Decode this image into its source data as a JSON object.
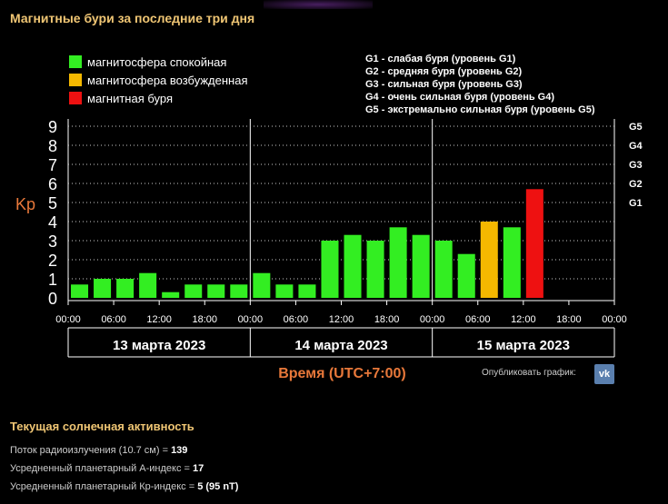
{
  "title": "Магнитные бури за последние три дня",
  "legend": [
    {
      "label": "магнитосфера спокойная",
      "color": "#33ee22"
    },
    {
      "label": "магнитосфера возбужденная",
      "color": "#f5b800"
    },
    {
      "label": "магнитная буря",
      "color": "#ee1111"
    }
  ],
  "g_legend": [
    "G1 - слабая буря (уровень G1)",
    "G2 - средняя буря (уровень G2)",
    "G3 - сильная буря (уровень G3)",
    "G4 - очень сильная буря (уровень G4)",
    "G5 - экстремально сильная буря (уровень G5)"
  ],
  "x_axis_title": "Время (UTC+7:00)",
  "publish": {
    "label": "Опубликовать график:",
    "icon": "vk-icon"
  },
  "solar": {
    "title": "Текущая солнечная активность",
    "rows": [
      {
        "label": "Поток радиоизлучения (10.7 см) = ",
        "value": "139"
      },
      {
        "label": "Усредненный планетарный А-индекс = ",
        "value": "17"
      },
      {
        "label": "Усредненный планетарный Кр-индекс = ",
        "value": "5 (95 nT)"
      }
    ]
  },
  "chart_data": {
    "type": "bar",
    "ylabel": "Kp",
    "ylim": [
      0,
      9
    ],
    "yticks": [
      "0",
      "1",
      "2",
      "3",
      "4",
      "5",
      "6",
      "7",
      "8",
      "9"
    ],
    "g_levels": [
      {
        "label": "G1",
        "kp": 5
      },
      {
        "label": "G2",
        "kp": 6
      },
      {
        "label": "G3",
        "kp": 7
      },
      {
        "label": "G4",
        "kp": 8
      },
      {
        "label": "G5",
        "kp": 9
      }
    ],
    "xticks": [
      "00:00",
      "06:00",
      "12:00",
      "18:00",
      "00:00",
      "06:00",
      "12:00",
      "18:00",
      "00:00",
      "06:00",
      "12:00",
      "18:00",
      "00:00"
    ],
    "days": [
      "13 марта 2023",
      "14 марта 2023",
      "15 марта 2023"
    ],
    "values": [
      0.7,
      1.0,
      1.0,
      1.3,
      0.3,
      0.7,
      0.7,
      0.7,
      1.3,
      0.7,
      0.7,
      3.0,
      3.3,
      3.0,
      3.7,
      3.3,
      3.0,
      2.3,
      4.0,
      3.7,
      5.7
    ],
    "colors": {
      "quiet": "#33ee22",
      "active": "#f5b800",
      "storm": "#ee1111"
    },
    "grid": true
  }
}
